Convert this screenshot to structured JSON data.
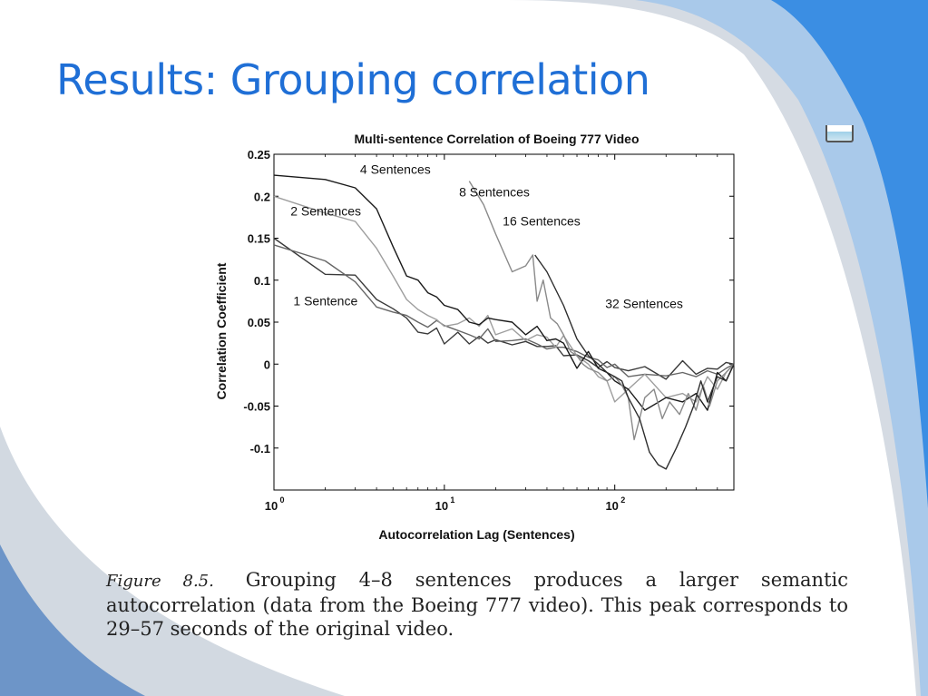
{
  "slide": {
    "title": "Results: Grouping correlation",
    "caption_label": "Figure 8.5.",
    "caption_text": "Grouping 4–8 sentences produces a larger semantic autocorrelation (data from the Boeing 777 video). This peak corresponds to 29–57 seconds of the original video.",
    "icon": "picture-icon"
  },
  "colors": {
    "title": "#1f6fd6",
    "accent_blue": "#3b8ee3",
    "light_blue": "#a9c9ea",
    "gray_swoosh": "#c7cfd9"
  },
  "chart_data": {
    "type": "line",
    "title": "Multi-sentence Correlation of Boeing 777 Video",
    "xlabel": "Autocorrelation Lag (Sentences)",
    "ylabel": "Correlation Coefficient",
    "xscale": "log",
    "xlim": [
      1,
      500
    ],
    "ylim": [
      -0.15,
      0.25
    ],
    "x_ticks": [
      {
        "value": 1,
        "base": "10",
        "exp": "0"
      },
      {
        "value": 10,
        "base": "10",
        "exp": "1"
      },
      {
        "value": 100,
        "base": "10",
        "exp": "2"
      }
    ],
    "y_ticks": [
      {
        "value": 0.25,
        "label": "0.25"
      },
      {
        "value": 0.2,
        "label": "0.2"
      },
      {
        "value": 0.15,
        "label": "0.15"
      },
      {
        "value": 0.1,
        "label": "0.1"
      },
      {
        "value": 0.05,
        "label": "0.05"
      },
      {
        "value": 0,
        "label": "0"
      },
      {
        "value": -0.05,
        "label": "-0.05"
      },
      {
        "value": -0.1,
        "label": "-0.1"
      }
    ],
    "grid": false,
    "legend": "none",
    "series": [
      {
        "name": "1 Sentence",
        "color": "#3a3a3a",
        "x": [
          1,
          2,
          3,
          4,
          5,
          6,
          7,
          8,
          9,
          10,
          12,
          14,
          16,
          18,
          20,
          25,
          30,
          35,
          40,
          45,
          50,
          60,
          70,
          80,
          90,
          100,
          120,
          150,
          200,
          250,
          300,
          350,
          400,
          450,
          500
        ],
        "y": [
          0.15,
          0.107,
          0.106,
          0.077,
          0.066,
          0.055,
          0.038,
          0.036,
          0.043,
          0.024,
          0.038,
          0.024,
          0.033,
          0.025,
          0.029,
          0.023,
          0.027,
          0.021,
          0.021,
          0.022,
          0.01,
          0.011,
          0.004,
          -0.004,
          0.003,
          -0.004,
          -0.008,
          -0.003,
          -0.018,
          0.004,
          -0.012,
          -0.005,
          -0.006,
          0.002,
          0.0
        ]
      },
      {
        "name": "2 Sentences",
        "color": "#666666",
        "x": [
          1,
          2,
          3,
          4,
          5,
          6,
          7,
          8,
          9,
          10,
          12,
          14,
          16,
          18,
          20,
          25,
          30,
          35,
          40,
          45,
          50,
          60,
          70,
          80,
          90,
          100,
          120,
          150,
          200,
          250,
          300,
          350,
          400,
          450,
          500
        ],
        "y": [
          0.142,
          0.123,
          0.098,
          0.068,
          0.062,
          0.058,
          0.05,
          0.044,
          0.052,
          0.046,
          0.04,
          0.035,
          0.03,
          0.042,
          0.027,
          0.028,
          0.03,
          0.024,
          0.018,
          0.02,
          0.02,
          0.015,
          0.008,
          0.005,
          -0.004,
          0.0,
          -0.015,
          -0.012,
          -0.014,
          -0.01,
          -0.015,
          -0.008,
          -0.012,
          -0.005,
          0.0
        ]
      },
      {
        "name": "4 Sentences",
        "color": "#9e9e9e",
        "x": [
          1,
          2,
          3,
          4,
          5,
          6,
          7,
          8,
          9,
          10,
          12,
          14,
          16,
          18,
          20,
          25,
          30,
          35,
          40,
          45,
          50,
          60,
          70,
          80,
          90,
          100,
          120,
          150,
          200,
          250,
          300,
          350,
          400,
          450,
          500
        ],
        "y": [
          0.2,
          0.18,
          0.17,
          0.138,
          0.105,
          0.077,
          0.065,
          0.058,
          0.053,
          0.045,
          0.048,
          0.055,
          0.045,
          0.058,
          0.035,
          0.042,
          0.028,
          0.035,
          0.032,
          0.02,
          0.034,
          0.01,
          0.0,
          -0.015,
          -0.02,
          -0.045,
          -0.03,
          -0.012,
          -0.04,
          -0.035,
          -0.045,
          -0.015,
          -0.03,
          -0.01,
          0.0
        ]
      },
      {
        "name": "8 Sentences",
        "color": "#1a1a1a",
        "x": [
          1,
          2,
          3,
          4,
          5,
          6,
          7,
          8,
          9,
          10,
          12,
          14,
          16,
          18,
          20,
          25,
          30,
          35,
          40,
          45,
          50,
          60,
          70,
          80,
          90,
          100,
          120,
          150,
          200,
          250,
          300,
          350,
          400,
          450,
          500
        ],
        "y": [
          0.225,
          0.22,
          0.21,
          0.185,
          0.14,
          0.105,
          0.1,
          0.085,
          0.08,
          0.07,
          0.065,
          0.05,
          0.047,
          0.055,
          0.053,
          0.05,
          0.035,
          0.045,
          0.028,
          0.03,
          0.025,
          -0.005,
          0.015,
          -0.005,
          -0.01,
          -0.02,
          -0.03,
          -0.055,
          -0.04,
          -0.045,
          -0.035,
          -0.055,
          -0.01,
          -0.02,
          0.0
        ]
      },
      {
        "name": "16 Sentences",
        "color": "#8a8a8a",
        "x": [
          14,
          17,
          20,
          25,
          30,
          33,
          35,
          38,
          42,
          46,
          50,
          55,
          60,
          65,
          70,
          80,
          90,
          100,
          110,
          120,
          130,
          140,
          150,
          170,
          190,
          210,
          240,
          270,
          300,
          330,
          360,
          400,
          450,
          500
        ],
        "y": [
          0.218,
          0.19,
          0.155,
          0.11,
          0.117,
          0.13,
          0.075,
          0.1,
          0.055,
          0.048,
          0.035,
          0.015,
          0.01,
          0.0,
          -0.005,
          -0.01,
          -0.02,
          -0.015,
          -0.025,
          -0.04,
          -0.09,
          -0.065,
          -0.04,
          -0.03,
          -0.065,
          -0.045,
          -0.06,
          -0.035,
          -0.055,
          -0.025,
          -0.05,
          -0.02,
          -0.01,
          0.0
        ]
      },
      {
        "name": "32 Sentences",
        "color": "#2e2e2e",
        "x": [
          34,
          40,
          50,
          60,
          70,
          80,
          90,
          100,
          110,
          120,
          140,
          160,
          180,
          200,
          230,
          260,
          290,
          320,
          350,
          400,
          450,
          500
        ],
        "y": [
          0.13,
          0.11,
          0.07,
          0.03,
          0.01,
          0.0,
          -0.01,
          -0.015,
          -0.02,
          -0.04,
          -0.065,
          -0.105,
          -0.12,
          -0.125,
          -0.1,
          -0.075,
          -0.05,
          -0.02,
          -0.045,
          -0.015,
          -0.02,
          0.0
        ]
      }
    ],
    "annotations": [
      {
        "text": "4 Sentences",
        "x": 3.2,
        "y": 0.227
      },
      {
        "text": "8 Sentences",
        "x": 12.2,
        "y": 0.2
      },
      {
        "text": "2 Sentences",
        "x": 1.25,
        "y": 0.177
      },
      {
        "text": "16 Sentences",
        "x": 22,
        "y": 0.165
      },
      {
        "text": "1 Sentence",
        "x": 1.3,
        "y": 0.07
      },
      {
        "text": "32 Sentences",
        "x": 88,
        "y": 0.067
      }
    ]
  }
}
